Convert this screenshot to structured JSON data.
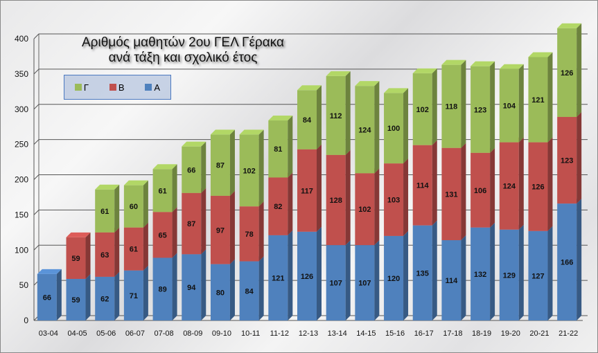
{
  "chart_data": {
    "type": "bar",
    "stacked": true,
    "title": "Αριθμός  μαθητών 2ου ΓΕΛ Γέρακα ανά τάξη και σχολικό έτος",
    "title_lines": [
      "Αριθμός  μαθητών 2ου ΓΕΛ Γέρακα",
      "ανά τάξη και σχολικό έτος"
    ],
    "xlabel": "",
    "ylabel": "",
    "ylim": [
      0,
      400
    ],
    "yticks": [
      0,
      50,
      100,
      150,
      200,
      250,
      300,
      350,
      400
    ],
    "grid": true,
    "legend_position": "top-left",
    "categories": [
      "03-04",
      "04-05",
      "05-06",
      "06-07",
      "07-08",
      "08-09",
      "09-10",
      "10-11",
      "11-12",
      "12-13",
      "13-14",
      "14-15",
      "15-16",
      "16-17",
      "17-18",
      "18-19",
      "19-20",
      "20-21",
      "21-22"
    ],
    "series": [
      {
        "name": "Α",
        "color": "#4f81bd",
        "values": [
          66,
          59,
          62,
          71,
          89,
          94,
          80,
          84,
          121,
          126,
          107,
          107,
          120,
          135,
          114,
          132,
          129,
          127,
          166
        ]
      },
      {
        "name": "Β",
        "color": "#c0504d",
        "values": [
          0,
          59,
          63,
          61,
          65,
          87,
          97,
          78,
          82,
          117,
          128,
          102,
          103,
          114,
          131,
          106,
          124,
          126,
          123
        ]
      },
      {
        "name": "Γ",
        "color": "#9bbb59",
        "values": [
          0,
          0,
          61,
          60,
          61,
          66,
          87,
          102,
          81,
          84,
          112,
          124,
          100,
          102,
          118,
          123,
          104,
          121,
          126
        ]
      }
    ],
    "legend_order": [
      "Γ",
      "Β",
      "Α"
    ]
  }
}
